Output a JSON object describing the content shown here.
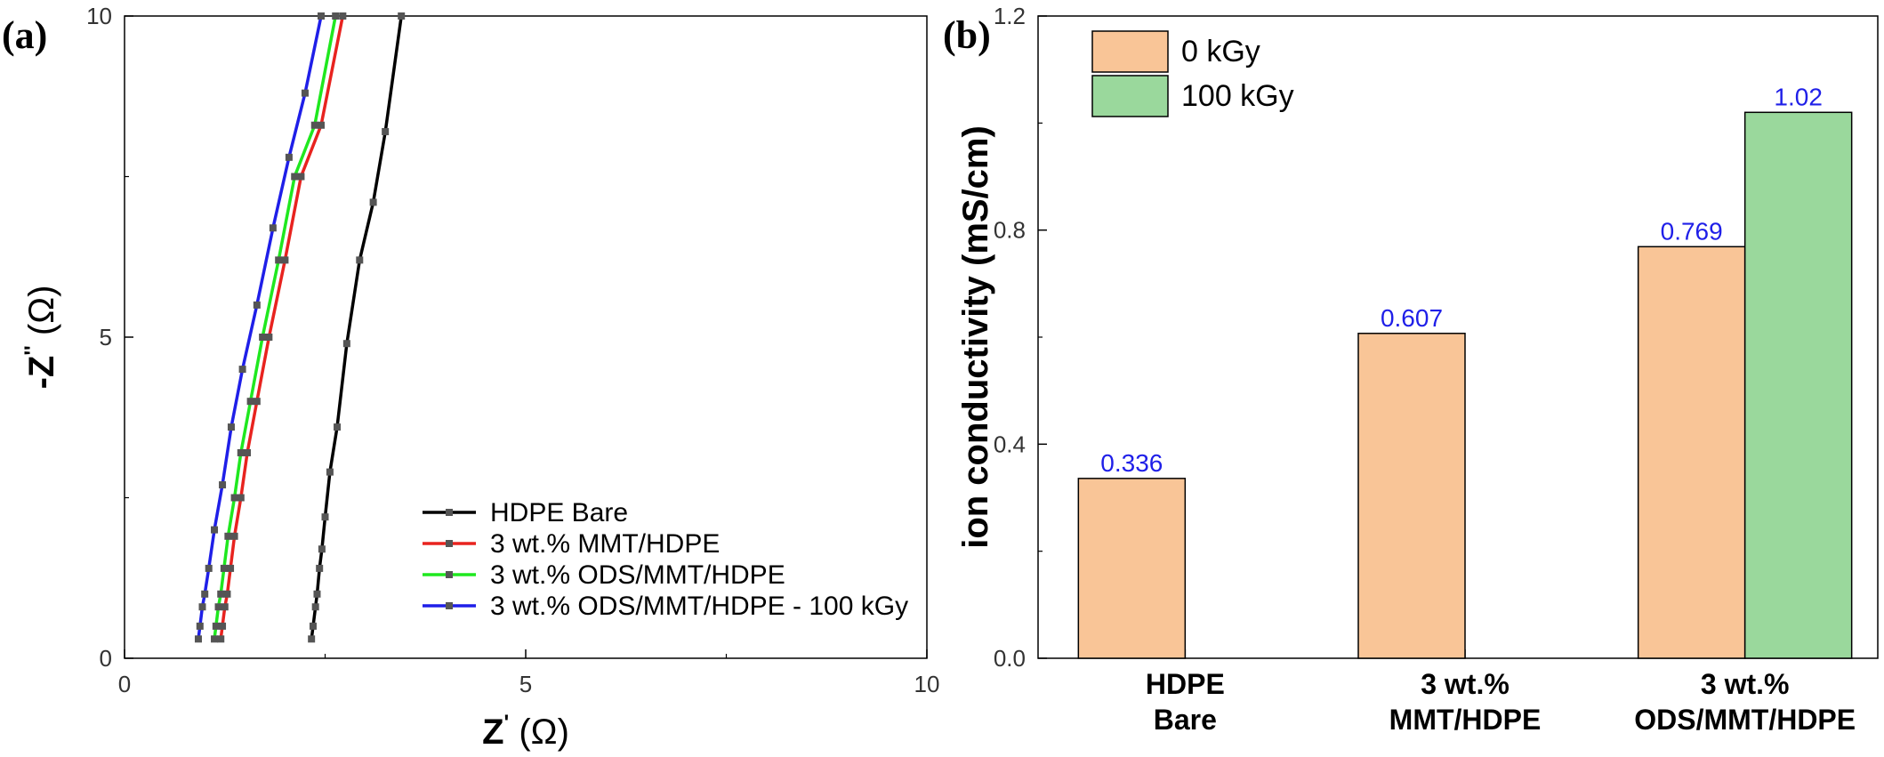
{
  "panels": {
    "a_label": "(a)",
    "b_label": "(b)"
  },
  "chart_data": [
    {
      "type": "line",
      "xlabel": "Z' (Ω)",
      "ylabel": "-Z'' (Ω)",
      "xlim": [
        0,
        10
      ],
      "ylim": [
        0,
        10
      ],
      "xticks": [
        "0",
        "5",
        "10"
      ],
      "yticks": [
        "0",
        "5",
        "10"
      ],
      "legend_position": "bottom-right",
      "series": [
        {
          "name": "HDPE Bare",
          "color": "#000000",
          "x": [
            2.33,
            2.35,
            2.38,
            2.4,
            2.43,
            2.46,
            2.5,
            2.56,
            2.65,
            2.77,
            2.93,
            3.1,
            3.25,
            3.45
          ],
          "y": [
            0.3,
            0.5,
            0.8,
            1.0,
            1.4,
            1.7,
            2.2,
            2.9,
            3.6,
            4.9,
            6.2,
            7.1,
            8.2,
            10.0
          ]
        },
        {
          "name": "3 wt.% MMT/HDPE",
          "color": "#e8231f",
          "x": [
            1.2,
            1.22,
            1.25,
            1.28,
            1.32,
            1.37,
            1.45,
            1.53,
            1.65,
            1.8,
            2.0,
            2.2,
            2.45,
            2.72
          ],
          "y": [
            0.3,
            0.5,
            0.8,
            1.0,
            1.4,
            1.9,
            2.5,
            3.2,
            4.0,
            5.0,
            6.2,
            7.5,
            8.3,
            10.0
          ]
        },
        {
          "name": "3 wt.% ODS/MMT/HDPE",
          "color": "#1fe81f",
          "x": [
            1.12,
            1.14,
            1.17,
            1.2,
            1.24,
            1.29,
            1.37,
            1.45,
            1.57,
            1.72,
            1.92,
            2.12,
            2.37,
            2.63
          ],
          "y": [
            0.3,
            0.5,
            0.8,
            1.0,
            1.4,
            1.9,
            2.5,
            3.2,
            4.0,
            5.0,
            6.2,
            7.5,
            8.3,
            10.0
          ]
        },
        {
          "name": "3 wt.% ODS/MMT/HDPE - 100 kGy",
          "color": "#1f1fe8",
          "x": [
            0.92,
            0.94,
            0.97,
            1.0,
            1.05,
            1.12,
            1.22,
            1.33,
            1.47,
            1.65,
            1.85,
            2.05,
            2.25,
            2.45
          ],
          "y": [
            0.3,
            0.5,
            0.8,
            1.0,
            1.4,
            2.0,
            2.7,
            3.6,
            4.5,
            5.5,
            6.7,
            7.8,
            8.8,
            10.0
          ]
        }
      ]
    },
    {
      "type": "bar",
      "ylabel": "ion conductivity (mS/cm)",
      "ylim": [
        0,
        1.2
      ],
      "yticks": [
        "0.0",
        "0.4",
        "0.8",
        "1.2"
      ],
      "legend_position": "top-left",
      "categories": [
        [
          "HDPE",
          "Bare"
        ],
        [
          "3 wt.%",
          "MMT/HDPE"
        ],
        [
          "3 wt.%",
          "ODS/MMT/HDPE"
        ]
      ],
      "series": [
        {
          "name": "0 kGy",
          "color": "#f9c597",
          "values": [
            0.336,
            0.607,
            0.769
          ],
          "labels": [
            "0.336",
            "0.607",
            "0.769"
          ]
        },
        {
          "name": "100 kGy",
          "color": "#9ad89c",
          "values": [
            null,
            null,
            1.02
          ],
          "labels": [
            "",
            "",
            "1.02"
          ]
        }
      ],
      "data_label_color": "#1f1fe8"
    }
  ]
}
